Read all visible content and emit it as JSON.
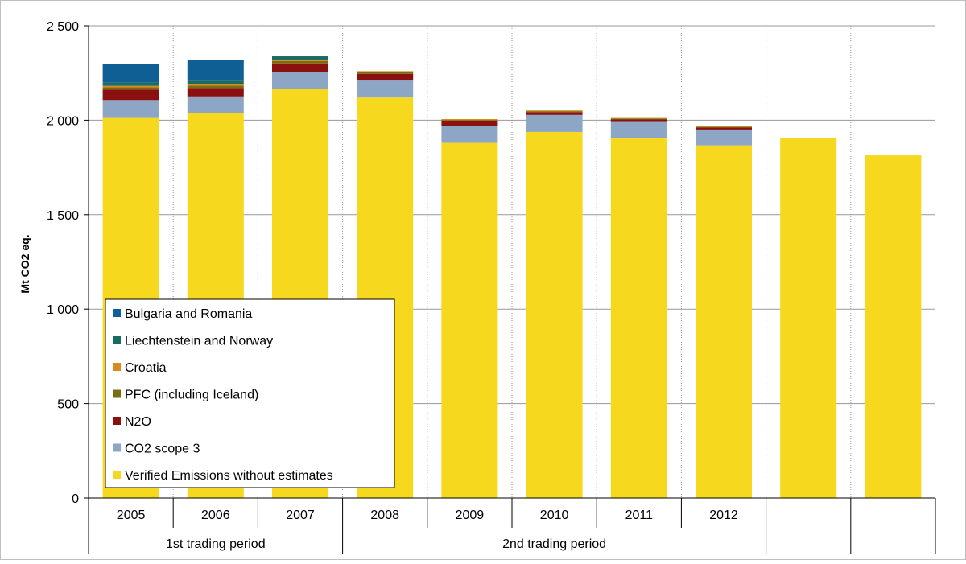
{
  "chart_data": {
    "type": "bar",
    "stacked": true,
    "ylabel": "Mt CO2 eq.",
    "ylim": [
      0,
      2500
    ],
    "ytick_step": 500,
    "ytick_labels": [
      "0",
      "500",
      "1 000",
      "1 500",
      "2 000",
      "2 500"
    ],
    "grid": {
      "horizontal": true,
      "vertical": true,
      "vertical_style": "dotted"
    },
    "categories": [
      "2005",
      "2006",
      "2007",
      "2008",
      "2009",
      "2010",
      "2011",
      "2012",
      "",
      ""
    ],
    "periods": [
      {
        "label": "1st trading period",
        "span": 3
      },
      {
        "label": "2nd trading period",
        "span": 5
      },
      {
        "label": "",
        "span": 1
      },
      {
        "label": "",
        "span": 1
      }
    ],
    "legend_position": "bottom-left, inside plot",
    "series": [
      {
        "name": "Verified Emissions without estimates",
        "color": "#f6d91f",
        "values": [
          2012,
          2036,
          2164,
          2120,
          1880,
          1938,
          1904,
          1867,
          1908,
          1814
        ]
      },
      {
        "name": "CO2 scope 3",
        "color": "#8ea6c6",
        "values": [
          95,
          90,
          92,
          90,
          90,
          90,
          87,
          84,
          0,
          0
        ]
      },
      {
        "name": "N2O",
        "color": "#8b1010",
        "values": [
          55,
          45,
          45,
          35,
          25,
          15,
          13,
          10,
          0,
          0
        ]
      },
      {
        "name": "PFC (including Iceland)",
        "color": "#7d6b12",
        "values": [
          12,
          12,
          12,
          8,
          6,
          5,
          5,
          4,
          0,
          0
        ]
      },
      {
        "name": "Croatia",
        "color": "#d88a1c",
        "values": [
          8,
          8,
          8,
          7,
          5,
          4,
          3,
          3,
          0,
          0
        ]
      },
      {
        "name": "Liechtenstein and Norway",
        "color": "#1a6b63",
        "values": [
          17,
          18,
          17,
          0,
          0,
          0,
          0,
          0,
          0,
          0
        ]
      },
      {
        "name": "Bulgaria and Romania",
        "color": "#0f5f94",
        "values": [
          100,
          112,
          0,
          0,
          0,
          0,
          0,
          0,
          0,
          0
        ]
      }
    ],
    "legend_order": [
      "Bulgaria and Romania",
      "Liechtenstein and Norway",
      "Croatia",
      "PFC (including Iceland)",
      "N2O",
      "CO2 scope 3",
      "Verified Emissions without estimates"
    ]
  }
}
